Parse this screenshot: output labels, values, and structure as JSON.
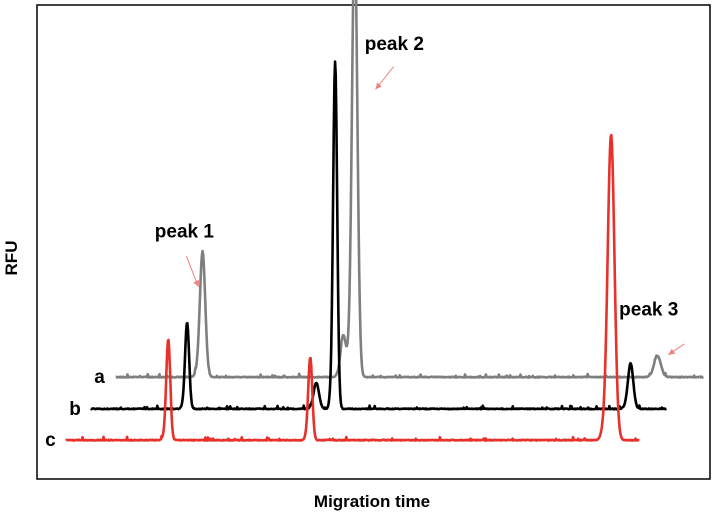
{
  "chart_data": {
    "type": "line",
    "title": "",
    "xlabel": "Migration time",
    "ylabel": "RFU",
    "grid": false,
    "legend": "none",
    "x_ticks": "none",
    "y_ticks": "none",
    "series": [
      {
        "name": "a",
        "color": "#7f7f7f",
        "baseline_fraction": 0.215,
        "peaks": [
          {
            "x_fraction": 0.246,
            "height": 0.265,
            "width": 0.004
          },
          {
            "x_fraction": 0.455,
            "height": 0.088,
            "width": 0.004
          },
          {
            "x_fraction": 0.472,
            "height": 0.935,
            "width": 0.004
          },
          {
            "x_fraction": 0.922,
            "height": 0.045,
            "width": 0.005
          }
        ]
      },
      {
        "name": "b",
        "color": "#000000",
        "baseline_fraction": 0.148,
        "peaks": [
          {
            "x_fraction": 0.223,
            "height": 0.183,
            "width": 0.003
          },
          {
            "x_fraction": 0.415,
            "height": 0.055,
            "width": 0.004
          },
          {
            "x_fraction": 0.443,
            "height": 0.733,
            "width": 0.003
          },
          {
            "x_fraction": 0.882,
            "height": 0.096,
            "width": 0.004
          }
        ]
      },
      {
        "name": "c",
        "color": "#e8312b",
        "baseline_fraction": 0.082,
        "peaks": [
          {
            "x_fraction": 0.195,
            "height": 0.213,
            "width": 0.003
          },
          {
            "x_fraction": 0.406,
            "height": 0.175,
            "width": 0.003
          },
          {
            "x_fraction": 0.853,
            "height": 0.645,
            "width": 0.005
          }
        ]
      }
    ],
    "annotations": [
      {
        "text": "peak 1",
        "series": "a",
        "peak_index": 0
      },
      {
        "text": "peak 2",
        "series": "a",
        "peak_index": 2
      },
      {
        "text": "peak 3",
        "series": "a",
        "peak_index": 3
      }
    ],
    "annotation_arrow_color": "#f08080"
  }
}
